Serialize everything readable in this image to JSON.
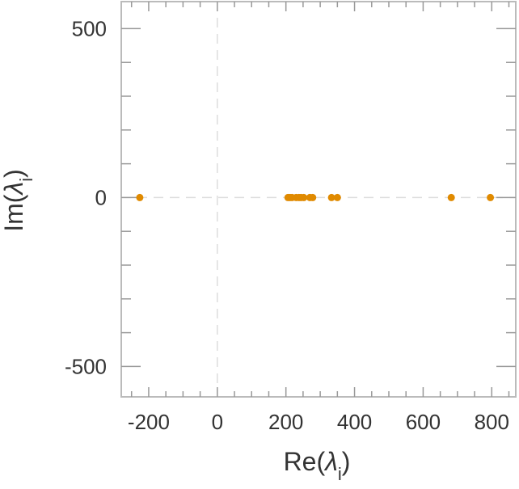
{
  "chart_data": {
    "type": "scatter",
    "title": "",
    "xlabel": {
      "main": "Re(",
      "symbol": "λ",
      "sub": "i",
      "close": ")"
    },
    "ylabel": {
      "main": "Im(",
      "symbol": "λ",
      "sub": "i",
      "close": ")"
    },
    "xlim": [
      -280,
      870
    ],
    "ylim": [
      -590,
      580
    ],
    "x_ticks": [
      -200,
      0,
      200,
      400,
      600,
      800
    ],
    "x_tick_labels": [
      "-200",
      "0",
      "200",
      "400",
      "600",
      "800"
    ],
    "y_ticks": [
      -500,
      0,
      500
    ],
    "y_tick_labels": [
      "-500",
      "0",
      "500"
    ],
    "grid": false,
    "zero_lines": true,
    "marker_color": "#e08a00",
    "frame_color": "#bbbbbb",
    "zero_line_color": "#dddddd",
    "series": [
      {
        "points": [
          {
            "x": -226,
            "y": 0
          },
          {
            "x": 206,
            "y": 0
          },
          {
            "x": 212,
            "y": 0
          },
          {
            "x": 218,
            "y": 0
          },
          {
            "x": 230,
            "y": 0
          },
          {
            "x": 238,
            "y": 0
          },
          {
            "x": 244,
            "y": 0
          },
          {
            "x": 252,
            "y": 0
          },
          {
            "x": 270,
            "y": 0
          },
          {
            "x": 278,
            "y": 0
          },
          {
            "x": 333,
            "y": 0
          },
          {
            "x": 350,
            "y": 0
          },
          {
            "x": 682,
            "y": 0
          },
          {
            "x": 796,
            "y": 0
          }
        ]
      }
    ]
  }
}
